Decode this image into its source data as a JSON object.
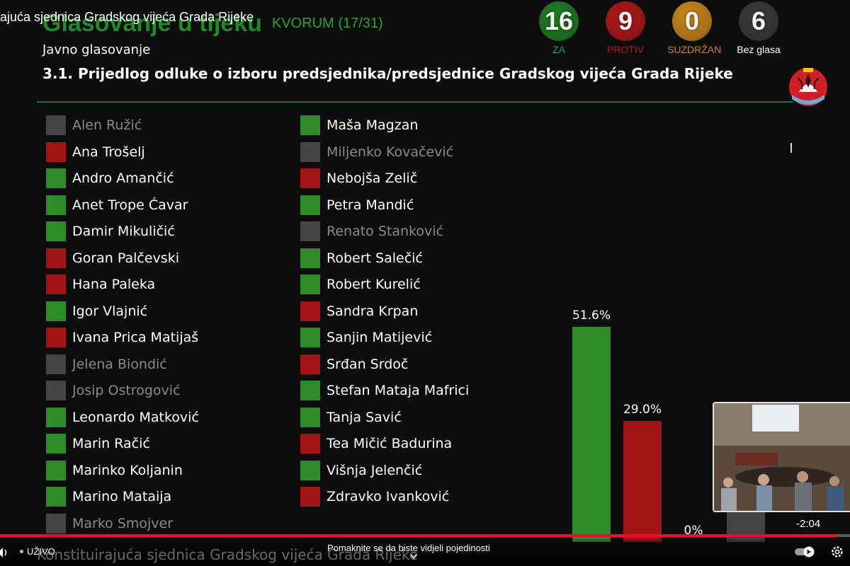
{
  "video_title": "ajuća sjednica Gradskog vijeća Grada Rijeke",
  "header": {
    "title": "Glasovanje u tijeku",
    "quorum": "KVORUM (17/31)",
    "vote_type": "Javno glasovanje",
    "agenda_item": "3.1. Prijedlog odluke o izboru predsjednika/predsjednice Gradskog vijeća Grada Rijeke"
  },
  "counters": [
    {
      "value": "16",
      "label": "ZA",
      "color": "#1e7d22",
      "label_color": "#2aa23a"
    },
    {
      "value": "9",
      "label": "PROTIV",
      "color": "#b01717",
      "label_color": "#b01717"
    },
    {
      "value": "0",
      "label": "SUZDRŽAN",
      "color": "#c9861a",
      "label_color": "#c9861a"
    },
    {
      "value": "6",
      "label": "Bez glasa",
      "color": "#3a3a3a",
      "label_color": "#ffffff"
    }
  ],
  "vote_colors": {
    "za": "#2f8a2a",
    "protiv": "#a31515",
    "none": "#444444"
  },
  "members_left": [
    {
      "name": "Alen Ružić",
      "vote": "none"
    },
    {
      "name": "Ana Trošelj",
      "vote": "protiv"
    },
    {
      "name": "Andro Amančić",
      "vote": "za"
    },
    {
      "name": "Anet Trope Ćavar",
      "vote": "za"
    },
    {
      "name": "Damir Mikuličić",
      "vote": "za"
    },
    {
      "name": "Goran Palčevski",
      "vote": "protiv"
    },
    {
      "name": "Hana Paleka",
      "vote": "protiv"
    },
    {
      "name": "Igor Vlajnić",
      "vote": "za"
    },
    {
      "name": "Ivana Prica Matijaš",
      "vote": "protiv"
    },
    {
      "name": "Jelena Biondić",
      "vote": "none"
    },
    {
      "name": "Josip Ostrogović",
      "vote": "none"
    },
    {
      "name": "Leonardo Matković",
      "vote": "za"
    },
    {
      "name": "Marin Račić",
      "vote": "za"
    },
    {
      "name": "Marinko Koljanin",
      "vote": "za"
    },
    {
      "name": "Marino Mataija",
      "vote": "za"
    },
    {
      "name": "Marko Smojver",
      "vote": "none"
    }
  ],
  "members_right": [
    {
      "name": "Maša Magzan",
      "vote": "za"
    },
    {
      "name": "Miljenko Kovačević",
      "vote": "none"
    },
    {
      "name": "Nebojša Zelič",
      "vote": "protiv"
    },
    {
      "name": "Petra Mandić",
      "vote": "za"
    },
    {
      "name": "Renato Stanković",
      "vote": "none"
    },
    {
      "name": "Robert Salečić",
      "vote": "za"
    },
    {
      "name": "Robert Kurelić",
      "vote": "za"
    },
    {
      "name": "Sandra Krpan",
      "vote": "protiv"
    },
    {
      "name": "Sanjin Matijević",
      "vote": "za"
    },
    {
      "name": "Srđan Srdoč",
      "vote": "protiv"
    },
    {
      "name": "Stefan Mataja Mafrici",
      "vote": "za"
    },
    {
      "name": "Tanja Savić",
      "vote": "za"
    },
    {
      "name": "Tea Mičić Badurina",
      "vote": "protiv"
    },
    {
      "name": "Višnja Jelenčić",
      "vote": "za"
    },
    {
      "name": "Zdravko Ivanković",
      "vote": "protiv"
    }
  ],
  "chart_data": {
    "type": "bar",
    "categories": [
      "ZA",
      "PROTIV",
      "SUZDRŽAN",
      "Bez glasa"
    ],
    "values": [
      51.6,
      29.0,
      0,
      19.4
    ],
    "labels": [
      "51.6%",
      "29.0%",
      "0%",
      ""
    ],
    "colors": [
      "#2f8a2a",
      "#a31515",
      "#c9861a",
      "#444444"
    ],
    "ylim": [
      0,
      100
    ]
  },
  "player": {
    "timestamp": "-2:04",
    "live_label": "UŽIVO",
    "hint": "Pomaknite se da biste vidjeli pojedinosti",
    "bottom_title": "Konstituirajuća sjednica Gradskog vijeća Grada Rijeke",
    "progress_fraction": 0.985
  }
}
